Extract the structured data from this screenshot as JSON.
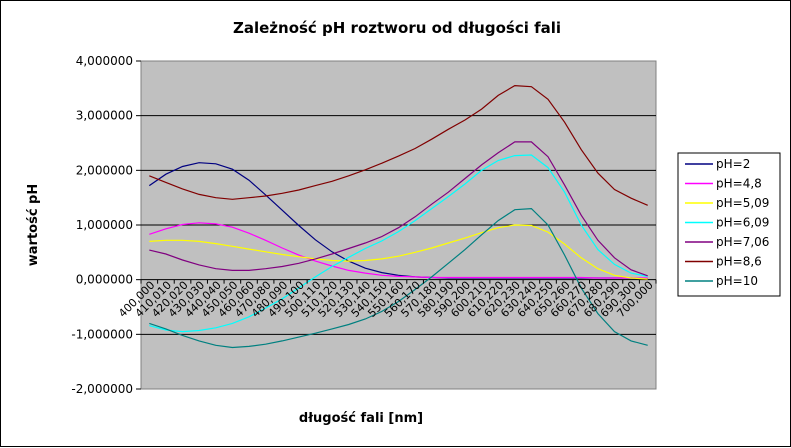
{
  "chart_data": {
    "type": "line",
    "title": "Zależność  pH roztworu od długości fali",
    "xlabel": "długość fali [nm]",
    "ylabel": "wartość pH",
    "ylim": [
      -2,
      4
    ],
    "yticks": [
      -2,
      -1,
      0,
      1,
      2,
      3,
      4
    ],
    "ytick_labels": [
      "-2,000000",
      "-1,000000",
      "0,000000",
      "1,000000",
      "2,000000",
      "3,000000",
      "4,000000"
    ],
    "grid": "horizontal",
    "legend_position": "right",
    "plot_background": "#c0c0c0",
    "categories": [
      "400,000",
      "410,010",
      "420,020",
      "430,030",
      "440,040",
      "450,050",
      "460,060",
      "470,080",
      "480,090",
      "490,100",
      "500,110",
      "510,120",
      "520,130",
      "530,140",
      "540,150",
      "550,160",
      "560,170",
      "570,180",
      "580,190",
      "590,200",
      "600,210",
      "610,220",
      "620,230",
      "630,240",
      "640,250",
      "650,260",
      "660,270",
      "670,280",
      "680,290",
      "690,300",
      "700,000"
    ],
    "series": [
      {
        "name": "pH=2",
        "color": "#000080",
        "values": [
          1.72,
          1.93,
          2.07,
          2.14,
          2.12,
          2.02,
          1.82,
          1.55,
          1.27,
          0.99,
          0.73,
          0.51,
          0.34,
          0.21,
          0.13,
          0.08,
          0.05,
          0.04,
          0.03,
          0.03,
          0.03,
          0.03,
          0.03,
          0.03,
          0.03,
          0.03,
          0.03,
          0.03,
          0.03,
          0.03,
          0.02
        ]
      },
      {
        "name": "pH=4,8",
        "color": "#ff00ff",
        "values": [
          0.83,
          0.93,
          1.01,
          1.04,
          1.02,
          0.96,
          0.85,
          0.72,
          0.58,
          0.45,
          0.34,
          0.25,
          0.17,
          0.12,
          0.08,
          0.06,
          0.05,
          0.04,
          0.04,
          0.04,
          0.04,
          0.04,
          0.04,
          0.04,
          0.04,
          0.04,
          0.04,
          0.03,
          0.03,
          0.03,
          0.03
        ]
      },
      {
        "name": "pH=5,09",
        "color": "#ffff00",
        "values": [
          0.7,
          0.72,
          0.72,
          0.7,
          0.66,
          0.61,
          0.56,
          0.51,
          0.46,
          0.42,
          0.38,
          0.35,
          0.34,
          0.35,
          0.38,
          0.43,
          0.5,
          0.58,
          0.67,
          0.76,
          0.86,
          0.95,
          1.0,
          0.99,
          0.87,
          0.65,
          0.4,
          0.2,
          0.08,
          0.03,
          0.01
        ]
      },
      {
        "name": "pH=6,09",
        "color": "#00ffff",
        "values": [
          -0.84,
          -0.92,
          -0.95,
          -0.93,
          -0.88,
          -0.8,
          -0.68,
          -0.52,
          -0.35,
          -0.15,
          0.05,
          0.24,
          0.41,
          0.57,
          0.71,
          0.88,
          1.08,
          1.3,
          1.52,
          1.75,
          2.0,
          2.18,
          2.27,
          2.28,
          2.05,
          1.6,
          1.0,
          0.55,
          0.28,
          0.12,
          0.06
        ]
      },
      {
        "name": "pH=7,06",
        "color": "#800080",
        "values": [
          0.54,
          0.47,
          0.36,
          0.27,
          0.2,
          0.17,
          0.17,
          0.2,
          0.24,
          0.3,
          0.38,
          0.47,
          0.57,
          0.67,
          0.79,
          0.95,
          1.15,
          1.38,
          1.6,
          1.85,
          2.1,
          2.32,
          2.52,
          2.52,
          2.25,
          1.73,
          1.18,
          0.72,
          0.4,
          0.18,
          0.07
        ]
      },
      {
        "name": "pH=8,6",
        "color": "#800000",
        "values": [
          1.9,
          1.78,
          1.66,
          1.56,
          1.5,
          1.47,
          1.5,
          1.53,
          1.58,
          1.64,
          1.72,
          1.8,
          1.9,
          2.01,
          2.13,
          2.26,
          2.4,
          2.57,
          2.75,
          2.92,
          3.12,
          3.37,
          3.55,
          3.53,
          3.3,
          2.88,
          2.38,
          1.95,
          1.65,
          1.49,
          1.36
        ]
      },
      {
        "name": "pH=10",
        "color": "#008080",
        "values": [
          -0.8,
          -0.9,
          -1.02,
          -1.12,
          -1.2,
          -1.24,
          -1.22,
          -1.18,
          -1.12,
          -1.05,
          -0.98,
          -0.9,
          -0.82,
          -0.72,
          -0.58,
          -0.4,
          -0.18,
          0.05,
          0.3,
          0.55,
          0.82,
          1.08,
          1.28,
          1.3,
          1.0,
          0.45,
          -0.15,
          -0.62,
          -0.95,
          -1.12,
          -1.2
        ]
      }
    ]
  }
}
